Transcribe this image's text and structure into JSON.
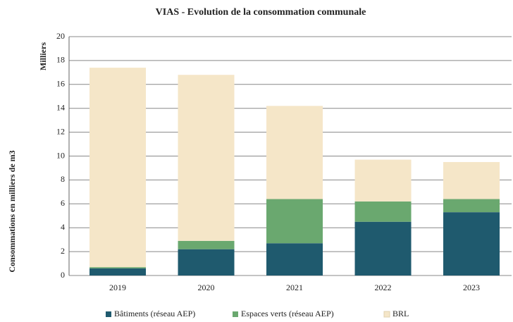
{
  "chart_data": {
    "type": "stacked_bar",
    "title": "VIAS - Evolution de la consommation communale",
    "y_unit_label": "Milliers",
    "y_label": "Consommations en milliers de m3",
    "categories": [
      "2019",
      "2020",
      "2021",
      "2022",
      "2023"
    ],
    "series": [
      {
        "name": "Bâtiments (réseau AEP)",
        "color": "#1f5a6e",
        "values": [
          0.6,
          2.2,
          2.7,
          4.5,
          5.3
        ]
      },
      {
        "name": "Espaces verts (réseau AEP)",
        "color": "#6aa86f",
        "values": [
          0.1,
          0.7,
          3.7,
          1.7,
          1.1
        ]
      },
      {
        "name": "BRL",
        "color": "#f5e6c8",
        "values": [
          16.7,
          13.9,
          7.8,
          3.5,
          3.1
        ]
      }
    ],
    "ylim": [
      0,
      20
    ],
    "yticks": [
      0,
      2,
      4,
      6,
      8,
      10,
      12,
      14,
      16,
      18,
      20
    ],
    "grid": true,
    "legend": "bottom"
  }
}
